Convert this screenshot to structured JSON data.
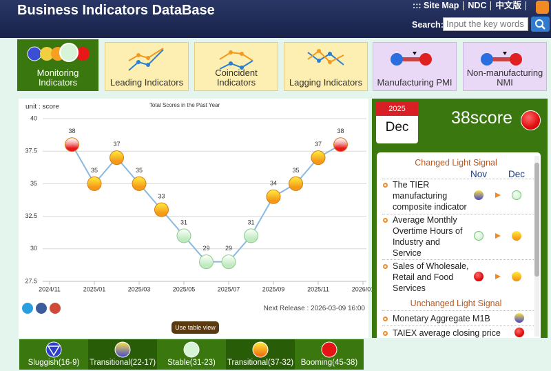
{
  "header": {
    "title": "Business Indicators DataBase",
    "links": [
      "::: Site Map",
      "NDC",
      "中文版"
    ],
    "search_label": "Search:",
    "search_placeholder": "Input the key words"
  },
  "tabs": [
    "Monitoring Indicators",
    "Leading Indicators",
    "Coincident Indicators",
    "Lagging Indicators",
    "Manufacturing PMI",
    "Non-manufacturing NMI"
  ],
  "chart_data": {
    "type": "line",
    "title": "Total Scores in the Past Year",
    "y_label": "unit : score",
    "categories": [
      "2024/11",
      null,
      "2025/01",
      null,
      "2025/03",
      null,
      "2025/05",
      null,
      "2025/07",
      null,
      "2025/09",
      null,
      "2025/11",
      null,
      "2026/01"
    ],
    "values": [
      null,
      38,
      35,
      37,
      35,
      33,
      31,
      29,
      29,
      31,
      34,
      35,
      37,
      38,
      null
    ],
    "point_colors": [
      null,
      "#e8191c",
      "#f49a1a",
      "#f49a1a",
      "#f49a1a",
      "#f49a1a",
      "#bfeabf",
      "#bfeabf",
      "#bfeabf",
      "#bfeabf",
      "#f49a1a",
      "#f49a1a",
      "#f49a1a",
      "#e8191c",
      null
    ],
    "color": "#8ab8de",
    "ylim": [
      27.5,
      40
    ],
    "yticks": [
      27.5,
      30,
      32.5,
      35,
      37.5,
      40
    ],
    "grid": true
  },
  "next_release": "Next Release : 2026-03-09 16:00",
  "table_view_button": "Use table view",
  "current": {
    "year": "2025",
    "month": "Dec",
    "score": "38score"
  },
  "changed": {
    "title": "Changed Light Signal",
    "columns": [
      "Nov",
      "Dec"
    ],
    "items": [
      "The TIER manufacturing composite indicator",
      "Average Monthly Overtime Hours of Industry and Service",
      "Sales of Wholesale, Retail and Food Services"
    ]
  },
  "unchanged": {
    "title": "Unchanged Light Signal",
    "items": [
      "Monetary Aggregate M1B",
      "TAIEX average closing price"
    ]
  },
  "legend": [
    "Sluggish(16-9)",
    "Transitional(22-17)",
    "Stable(31-23)",
    "Transitional(37-32)",
    "Booming(45-38)"
  ]
}
